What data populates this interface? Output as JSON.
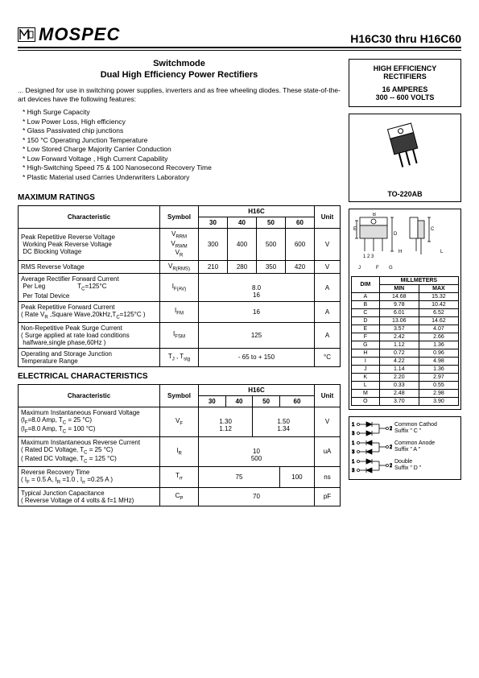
{
  "brand": "MOSPEC",
  "part_range": "H16C30 thru H16C60",
  "title": "Switchmode",
  "subtitle": "Dual High Efficiency Power Rectifiers",
  "intro": "... Designed for use in switching power supplies, inverters and as free wheeling diodes. These state-of-the-art devices have the following features:",
  "features": [
    "High Surge Capacity",
    "Low Power Loss, High efficiency",
    "Glass Passivated chip junctions",
    "150 °C Operating Junction Temperature",
    "Low Stored Charge Majority Carrier Conduction",
    "Low Forward Voltage , High Current Capability",
    "High-Switching Speed 75 & 100 Nanosecond Recovery Time",
    "Plastic Material used Carries Underwriters Laboratory"
  ],
  "right_box": {
    "l1": "HIGH EFFICIENCY",
    "l2": "RECTIFIERS",
    "l3": "16 AMPERES",
    "l4": "300 -- 600 VOLTS"
  },
  "package_name": "TO-220AB",
  "max_head": "MAXIMUM RATINGS",
  "elec_head": "ELECTRICAL CHARACTERISTICS",
  "col": {
    "char": "Characteristic",
    "sym": "Symbol",
    "family": "H16C",
    "unit": "Unit",
    "c30": "30",
    "c40": "40",
    "c50": "50",
    "c60": "60"
  },
  "max_rows": {
    "r1": {
      "c": "Peak Repetitive Reverse Voltage\n Working Peak Reverse Voltage\n DC Blocking Voltage",
      "s": "V_RRM\nV_RWM\nV_R",
      "v30": "300",
      "v40": "400",
      "v50": "500",
      "v60": "600",
      "u": "V"
    },
    "r2": {
      "c": "RMS Reverse Voltage",
      "s": "V_R(RMS)",
      "v30": "210",
      "v40": "280",
      "v50": "350",
      "v60": "420",
      "u": "V"
    },
    "r3": {
      "c": "Average Rectifier Forward Current\n Per Leg                    T_C=125°C\n Per Total Device",
      "s": "I_F(AV)",
      "v1": "8.0",
      "v2": "16",
      "u": "A"
    },
    "r4": {
      "c": "Peak Repetitive Forward Current\n( Rate V_R ,Square Wave,20kHz,T_C=125°C )",
      "s": "I_FM",
      "v": "16",
      "u": "A"
    },
    "r5": {
      "c": "Non-Repetitive Peak Surge Current\n( Surge applied at rate load conditions\n halfware,single phase,60Hz )",
      "s": "I_FSM",
      "v": "125",
      "u": "A"
    },
    "r6": {
      "c": "Operating and Storage Junction\nTemperature Range",
      "s": "T_J , T_stg",
      "v": "- 65 to + 150",
      "u": "°C"
    }
  },
  "elec_rows": {
    "r1": {
      "c": "Maximum Instantaneous Forward Voltage\n(I_F=8.0 Amp, T_C = 25 °C)\n(I_F=8.0 Amp, T_C = 100 °C)",
      "s": "V_F",
      "a1": "1.30",
      "a2": "1.12",
      "b1": "1.50",
      "b2": "1.34",
      "u": "V"
    },
    "r2": {
      "c": "Maximum Instantaneous Reverse Current\n( Rated DC Voltage, T_C = 25 °C)\n( Rated DC Voltage, T_C = 125 °C)",
      "s": "I_R",
      "v1": "10",
      "v2": "500",
      "u": "uA"
    },
    "r3": {
      "c": "Reverse Recovery Time\n( I_F = 0.5 A, I_R =1.0 , I_rr =0.25 A )",
      "s": "T_rr",
      "a": "75",
      "b": "100",
      "u": "ns"
    },
    "r4": {
      "c": "Typical Junction Capacitance\n( Reverse Voltage of 4 volts & f=1 MHz)",
      "s": "C_P",
      "v": "70",
      "u": "pF"
    }
  },
  "dim_head": "MILLMETERS",
  "dim_cols": {
    "d": "DIM",
    "min": "MIN",
    "max": "MAX"
  },
  "dims": [
    {
      "d": "A",
      "min": "14.68",
      "max": "15.32"
    },
    {
      "d": "B",
      "min": "9.78",
      "max": "10.42"
    },
    {
      "d": "C",
      "min": "6.01",
      "max": "6.52"
    },
    {
      "d": "D",
      "min": "13.06",
      "max": "14.62"
    },
    {
      "d": "E",
      "min": "3.57",
      "max": "4.07"
    },
    {
      "d": "F",
      "min": "2.42",
      "max": "2.66"
    },
    {
      "d": "G",
      "min": "1.12",
      "max": "1.36"
    },
    {
      "d": "H",
      "min": "0.72",
      "max": "0.96"
    },
    {
      "d": "I",
      "min": "4.22",
      "max": "4.98"
    },
    {
      "d": "J",
      "min": "1.14",
      "max": "1.36"
    },
    {
      "d": "K",
      "min": "2.20",
      "max": "2.97"
    },
    {
      "d": "L",
      "min": "0.33",
      "max": "0.55"
    },
    {
      "d": "M",
      "min": "2.48",
      "max": "2.98"
    },
    {
      "d": "O",
      "min": "3.70",
      "max": "3.90"
    }
  ],
  "pin_configs": {
    "c1": "Common Cathod\nSuffix \" C \"",
    "c2": "Common Anode\nSuffix \" A \"",
    "c3": "Double\nSuffix \" D \""
  }
}
